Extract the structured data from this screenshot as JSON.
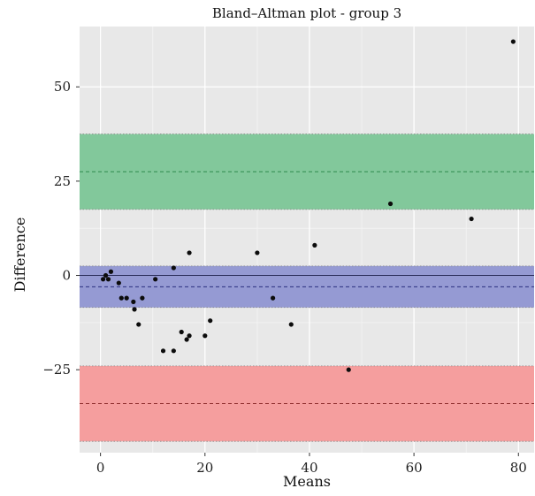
{
  "chart_data": {
    "type": "scatter",
    "title": "Bland–Altman plot - group 3",
    "xlabel": "Means",
    "ylabel": "Difference",
    "xlim": [
      -4,
      83
    ],
    "ylim": [
      -47,
      66
    ],
    "xticks": [
      0,
      20,
      40,
      60,
      80
    ],
    "yticks": [
      -25,
      0,
      25,
      50
    ],
    "xtick_labels": [
      "0",
      "20",
      "40",
      "60",
      "80"
    ],
    "ytick_labels": [
      "−25",
      "0",
      "25",
      "50"
    ],
    "grid": true,
    "background": "#e8e8e8",
    "bands": [
      {
        "role": "upper-limit-of-agreement",
        "ymin": 17.5,
        "ymax": 37.5,
        "mean": 27.5,
        "fill": "#82c89b",
        "line": "#2e8b4e"
      },
      {
        "role": "mean-difference",
        "ymin": -8.5,
        "ymax": 2.5,
        "mean": -3.0,
        "fill": "#959ad3",
        "line": "#2a2f80"
      },
      {
        "role": "lower-limit-of-agreement",
        "ymin": -44,
        "ymax": -24,
        "mean": -34,
        "fill": "#f59e9e",
        "line": "#8b2a2a"
      }
    ],
    "zero_line": 0,
    "points": [
      {
        "x": 0.5,
        "y": -1
      },
      {
        "x": 1.0,
        "y": 0
      },
      {
        "x": 1.5,
        "y": -1
      },
      {
        "x": 2.0,
        "y": 1
      },
      {
        "x": 3.5,
        "y": -2
      },
      {
        "x": 4.0,
        "y": -6
      },
      {
        "x": 5.0,
        "y": -6
      },
      {
        "x": 6.3,
        "y": -7
      },
      {
        "x": 6.5,
        "y": -9
      },
      {
        "x": 7.3,
        "y": -13
      },
      {
        "x": 8.0,
        "y": -6
      },
      {
        "x": 10.5,
        "y": -1
      },
      {
        "x": 12.0,
        "y": -20
      },
      {
        "x": 14.0,
        "y": -20
      },
      {
        "x": 14.0,
        "y": 2
      },
      {
        "x": 15.5,
        "y": -15
      },
      {
        "x": 16.5,
        "y": -17
      },
      {
        "x": 17.0,
        "y": -16
      },
      {
        "x": 17.0,
        "y": 6
      },
      {
        "x": 20.0,
        "y": -16
      },
      {
        "x": 21.0,
        "y": -12
      },
      {
        "x": 30.0,
        "y": 6
      },
      {
        "x": 33.0,
        "y": -6
      },
      {
        "x": 36.5,
        "y": -13
      },
      {
        "x": 41.0,
        "y": 8
      },
      {
        "x": 47.5,
        "y": -25
      },
      {
        "x": 55.5,
        "y": 19
      },
      {
        "x": 71.0,
        "y": 15
      },
      {
        "x": 79.0,
        "y": 62
      }
    ]
  }
}
